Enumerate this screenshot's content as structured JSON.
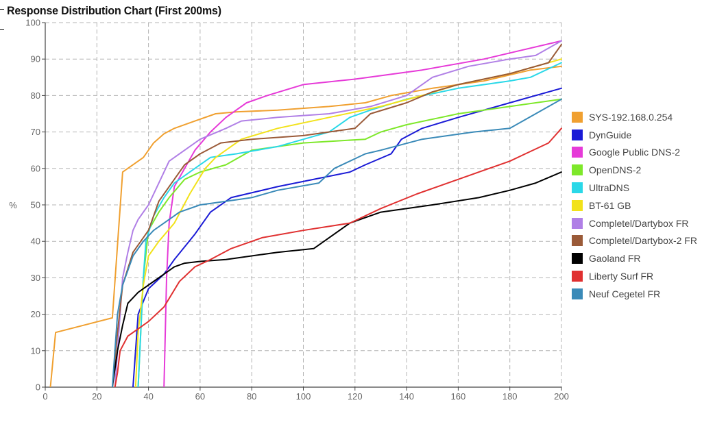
{
  "chart_data": {
    "type": "line",
    "title": "Response Distribution Chart (First 200ms)",
    "xlabel": "",
    "ylabel": "%",
    "xlim": [
      0,
      200
    ],
    "ylim": [
      0,
      100
    ],
    "x_ticks": [
      0,
      20,
      40,
      60,
      80,
      100,
      120,
      140,
      160,
      180,
      200
    ],
    "y_ticks": [
      0,
      10,
      20,
      30,
      40,
      50,
      60,
      70,
      80,
      90,
      100
    ],
    "grid": true,
    "legend_position": "right",
    "series": [
      {
        "name": "SYS-192.168.0.254",
        "color": "#f0a030",
        "points": [
          [
            2,
            0
          ],
          [
            4,
            15
          ],
          [
            26,
            19
          ],
          [
            30,
            59
          ],
          [
            38,
            63
          ],
          [
            42,
            67
          ],
          [
            46,
            69.5
          ],
          [
            50,
            71
          ],
          [
            58,
            73
          ],
          [
            66,
            75
          ],
          [
            74,
            75.5
          ],
          [
            90,
            76
          ],
          [
            110,
            77
          ],
          [
            124,
            78
          ],
          [
            134,
            80
          ],
          [
            150,
            82
          ],
          [
            170,
            84
          ],
          [
            188,
            87
          ],
          [
            200,
            88
          ]
        ]
      },
      {
        "name": "DynGuide",
        "color": "#1a1ad6",
        "points": [
          [
            34,
            0
          ],
          [
            36,
            20
          ],
          [
            40,
            27
          ],
          [
            46,
            31
          ],
          [
            50,
            35
          ],
          [
            58,
            42
          ],
          [
            64,
            48
          ],
          [
            72,
            52
          ],
          [
            90,
            55
          ],
          [
            118,
            59
          ],
          [
            124,
            61
          ],
          [
            134,
            64
          ],
          [
            138,
            68
          ],
          [
            146,
            71
          ],
          [
            160,
            74
          ],
          [
            180,
            78
          ],
          [
            200,
            82
          ]
        ]
      },
      {
        "name": "Google Public DNS-2",
        "color": "#e63ad8",
        "points": [
          [
            46,
            0
          ],
          [
            46.5,
            15
          ],
          [
            47,
            30
          ],
          [
            48,
            45
          ],
          [
            50,
            55
          ],
          [
            54,
            60
          ],
          [
            58,
            65
          ],
          [
            64,
            70
          ],
          [
            70,
            74
          ],
          [
            78,
            78
          ],
          [
            86,
            80
          ],
          [
            100,
            83
          ],
          [
            120,
            84.5
          ],
          [
            146,
            87
          ],
          [
            170,
            90
          ],
          [
            200,
            95
          ]
        ]
      },
      {
        "name": "OpenDNS-2",
        "color": "#7ee82a",
        "points": [
          [
            36,
            0
          ],
          [
            37,
            15
          ],
          [
            38,
            30
          ],
          [
            40,
            43
          ],
          [
            44,
            48
          ],
          [
            48,
            52
          ],
          [
            54,
            57
          ],
          [
            60,
            59
          ],
          [
            70,
            61
          ],
          [
            80,
            65
          ],
          [
            100,
            67
          ],
          [
            124,
            68
          ],
          [
            130,
            70
          ],
          [
            140,
            72
          ],
          [
            160,
            75
          ],
          [
            180,
            77
          ],
          [
            200,
            79
          ]
        ]
      },
      {
        "name": "UltraDNS",
        "color": "#2ad8e8",
        "points": [
          [
            36,
            0
          ],
          [
            37,
            15
          ],
          [
            38,
            30
          ],
          [
            39,
            40
          ],
          [
            42,
            47
          ],
          [
            46,
            52
          ],
          [
            50,
            56
          ],
          [
            56,
            59
          ],
          [
            64,
            63
          ],
          [
            74,
            64
          ],
          [
            90,
            66
          ],
          [
            110,
            70
          ],
          [
            118,
            74
          ],
          [
            126,
            76
          ],
          [
            140,
            79
          ],
          [
            160,
            82
          ],
          [
            180,
            84
          ],
          [
            188,
            85
          ],
          [
            200,
            89
          ]
        ]
      },
      {
        "name": "BT-61 GB",
        "color": "#f2e21a",
        "points": [
          [
            35,
            0
          ],
          [
            36,
            15
          ],
          [
            38,
            28
          ],
          [
            40,
            36
          ],
          [
            44,
            40
          ],
          [
            50,
            45
          ],
          [
            56,
            53
          ],
          [
            62,
            60
          ],
          [
            66,
            63
          ],
          [
            76,
            68
          ],
          [
            90,
            71
          ],
          [
            110,
            74
          ],
          [
            130,
            77
          ],
          [
            146,
            80
          ],
          [
            160,
            83
          ],
          [
            180,
            86
          ],
          [
            200,
            90
          ]
        ]
      },
      {
        "name": "Completel/Dartybox FR",
        "color": "#b07fe6",
        "points": [
          [
            27,
            0
          ],
          [
            29,
            20
          ],
          [
            30,
            30
          ],
          [
            32,
            37
          ],
          [
            34,
            43
          ],
          [
            36,
            46
          ],
          [
            40,
            50
          ],
          [
            44,
            56
          ],
          [
            48,
            62
          ],
          [
            54,
            65
          ],
          [
            60,
            68
          ],
          [
            70,
            71
          ],
          [
            76,
            73
          ],
          [
            90,
            74
          ],
          [
            110,
            75
          ],
          [
            126,
            77
          ],
          [
            140,
            80
          ],
          [
            150,
            85
          ],
          [
            164,
            88
          ],
          [
            180,
            90
          ],
          [
            190,
            91
          ],
          [
            200,
            95
          ]
        ]
      },
      {
        "name": "Completel/Dartybox-2 FR",
        "color": "#9a5a38",
        "points": [
          [
            26,
            0
          ],
          [
            28,
            15
          ],
          [
            30,
            28
          ],
          [
            34,
            37
          ],
          [
            40,
            43
          ],
          [
            44,
            51
          ],
          [
            48,
            55
          ],
          [
            54,
            61
          ],
          [
            60,
            64
          ],
          [
            68,
            67
          ],
          [
            80,
            68
          ],
          [
            100,
            69
          ],
          [
            120,
            71
          ],
          [
            126,
            75
          ],
          [
            140,
            78
          ],
          [
            150,
            81
          ],
          [
            160,
            83
          ],
          [
            180,
            86
          ],
          [
            195,
            89
          ],
          [
            200,
            94
          ]
        ]
      },
      {
        "name": "Gaoland FR",
        "color": "#000000",
        "points": [
          [
            26,
            0
          ],
          [
            28,
            10
          ],
          [
            30,
            17
          ],
          [
            32,
            23
          ],
          [
            36,
            26
          ],
          [
            40,
            28
          ],
          [
            46,
            31
          ],
          [
            50,
            33
          ],
          [
            54,
            34
          ],
          [
            60,
            34.5
          ],
          [
            70,
            35
          ],
          [
            90,
            37
          ],
          [
            104,
            38
          ],
          [
            118,
            45
          ],
          [
            130,
            48
          ],
          [
            150,
            50
          ],
          [
            168,
            52
          ],
          [
            180,
            54
          ],
          [
            190,
            56
          ],
          [
            200,
            59
          ]
        ]
      },
      {
        "name": "Liberty Surf FR",
        "color": "#e03030",
        "points": [
          [
            27,
            0
          ],
          [
            28,
            4
          ],
          [
            29,
            10
          ],
          [
            32,
            14
          ],
          [
            36,
            16
          ],
          [
            40,
            18
          ],
          [
            46,
            22
          ],
          [
            52,
            29
          ],
          [
            58,
            33
          ],
          [
            64,
            35
          ],
          [
            72,
            38
          ],
          [
            84,
            41
          ],
          [
            100,
            43
          ],
          [
            118,
            45
          ],
          [
            130,
            49
          ],
          [
            144,
            53
          ],
          [
            156,
            56
          ],
          [
            168,
            59
          ],
          [
            180,
            62
          ],
          [
            186,
            64
          ],
          [
            195,
            67
          ],
          [
            200,
            71
          ]
        ]
      },
      {
        "name": "Neuf Cegetel FR",
        "color": "#3a8ab8",
        "points": [
          [
            26,
            0
          ],
          [
            28,
            20
          ],
          [
            30,
            28
          ],
          [
            34,
            36
          ],
          [
            38,
            40
          ],
          [
            42,
            43
          ],
          [
            46,
            45
          ],
          [
            52,
            48
          ],
          [
            60,
            50
          ],
          [
            70,
            51
          ],
          [
            80,
            52
          ],
          [
            90,
            54
          ],
          [
            106,
            56
          ],
          [
            112,
            60
          ],
          [
            124,
            64
          ],
          [
            130,
            65
          ],
          [
            146,
            68
          ],
          [
            166,
            70
          ],
          [
            180,
            71
          ],
          [
            190,
            75
          ],
          [
            200,
            79
          ]
        ]
      }
    ]
  }
}
